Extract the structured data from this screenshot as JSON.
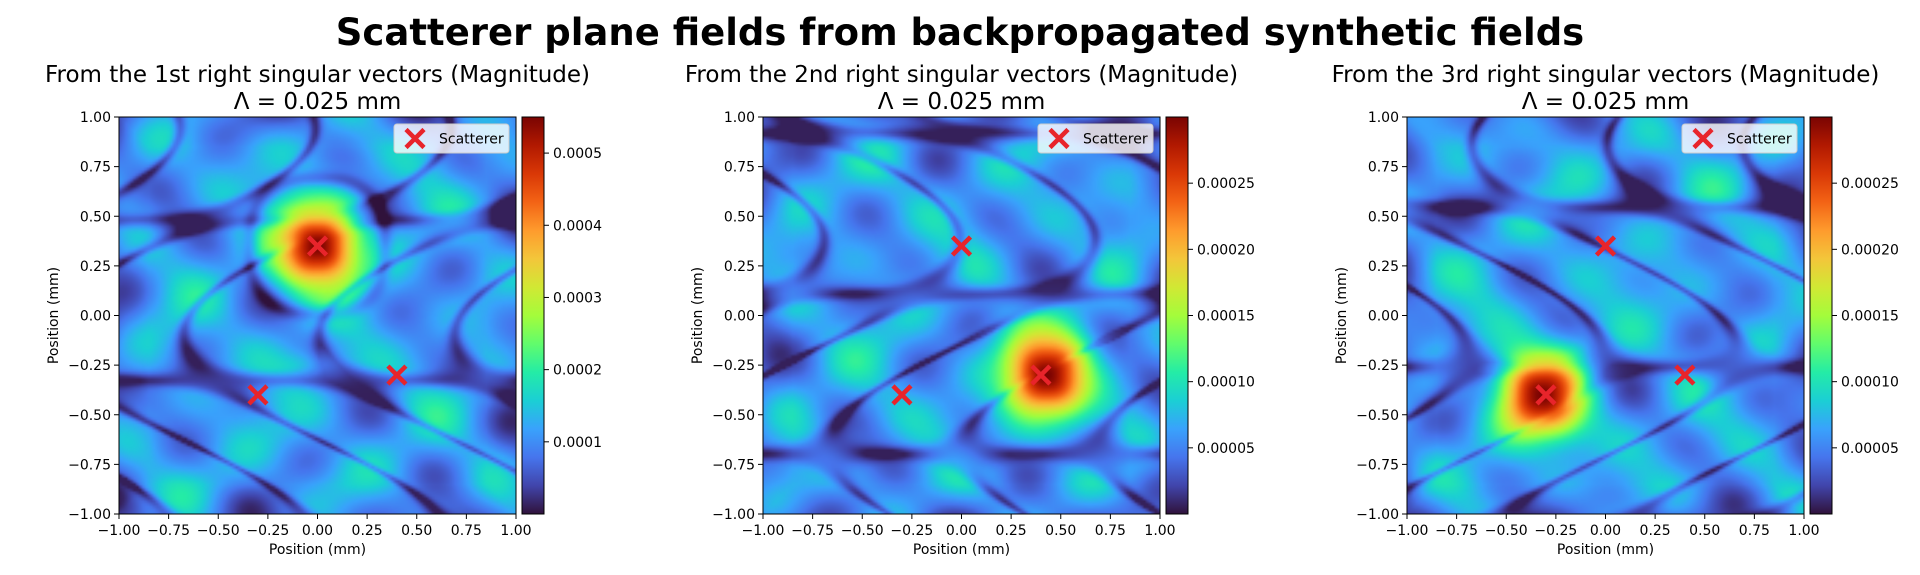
{
  "suptitle": "Scatterer plane fields from backpropagated synthetic fields",
  "colors": {
    "marker": "#e8242b",
    "colormap": [
      "#30123b",
      "#4145ab",
      "#4675ed",
      "#39a2fc",
      "#1bcfd4",
      "#24eca6",
      "#61fc6c",
      "#a4fc3b",
      "#d1e834",
      "#f3c63a",
      "#fe9b2d",
      "#f36315",
      "#d93806",
      "#b11901",
      "#7a0402"
    ]
  },
  "chart_data": [
    {
      "type": "heatmap",
      "title": "From the 1st right singular vectors (Magnitude)",
      "subtitle": "Λ = 0.025 mm",
      "xlabel": "Position (mm)",
      "ylabel": "Position (mm)",
      "xlim": [
        -1.0,
        1.0
      ],
      "ylim": [
        -1.0,
        1.0
      ],
      "xticks": [
        "−1.00",
        "−0.75",
        "−0.50",
        "−0.25",
        "0.00",
        "0.25",
        "0.50",
        "0.75",
        "1.00"
      ],
      "yticks": [
        "−1.00",
        "−0.75",
        "−0.50",
        "−0.25",
        "0.00",
        "0.25",
        "0.50",
        "0.75",
        "1.00"
      ],
      "colorbar": {
        "min": 0.0,
        "max": 0.00055,
        "ticks": [
          0.0001,
          0.0002,
          0.0003,
          0.0004,
          0.0005
        ],
        "tick_labels": [
          "0.0001",
          "0.0002",
          "0.0003",
          "0.0004",
          "0.0005"
        ]
      },
      "peak": {
        "x": 0.0,
        "y": 0.35,
        "value": 0.00055
      },
      "scatterers": [
        {
          "x": 0.0,
          "y": 0.35
        },
        {
          "x": -0.3,
          "y": -0.4
        },
        {
          "x": 0.4,
          "y": -0.3
        }
      ],
      "legend": {
        "entries": [
          "Scatterer"
        ],
        "position": "upper-right"
      }
    },
    {
      "type": "heatmap",
      "title": "From the 2nd right singular vectors (Magnitude)",
      "subtitle": "Λ = 0.025 mm",
      "xlabel": "Position (mm)",
      "ylabel": "Position (mm)",
      "xlim": [
        -1.0,
        1.0
      ],
      "ylim": [
        -1.0,
        1.0
      ],
      "xticks": [
        "−1.00",
        "−0.75",
        "−0.50",
        "−0.25",
        "0.00",
        "0.25",
        "0.50",
        "0.75",
        "1.00"
      ],
      "yticks": [
        "−1.00",
        "−0.75",
        "−0.50",
        "−0.25",
        "0.00",
        "0.25",
        "0.50",
        "0.75",
        "1.00"
      ],
      "colorbar": {
        "min": 0.0,
        "max": 0.0003,
        "ticks": [
          5e-05,
          0.0001,
          0.00015,
          0.0002,
          0.00025
        ],
        "tick_labels": [
          "0.00005",
          "0.00010",
          "0.00015",
          "0.00020",
          "0.00025"
        ]
      },
      "peak": {
        "x": 0.43,
        "y": -0.3,
        "value": 0.0003
      },
      "scatterers": [
        {
          "x": 0.0,
          "y": 0.35
        },
        {
          "x": -0.3,
          "y": -0.4
        },
        {
          "x": 0.4,
          "y": -0.3
        }
      ],
      "legend": {
        "entries": [
          "Scatterer"
        ],
        "position": "upper-right"
      }
    },
    {
      "type": "heatmap",
      "title": "From the 3rd right singular vectors (Magnitude)",
      "subtitle": "Λ = 0.025 mm",
      "xlabel": "Position (mm)",
      "ylabel": "Position (mm)",
      "xlim": [
        -1.0,
        1.0
      ],
      "ylim": [
        -1.0,
        1.0
      ],
      "xticks": [
        "−1.00",
        "−0.75",
        "−0.50",
        "−0.25",
        "0.00",
        "0.25",
        "0.50",
        "0.75",
        "1.00"
      ],
      "yticks": [
        "−1.00",
        "−0.75",
        "−0.50",
        "−0.25",
        "0.00",
        "0.25",
        "0.50",
        "0.75",
        "1.00"
      ],
      "colorbar": {
        "min": 0.0,
        "max": 0.0003,
        "ticks": [
          5e-05,
          0.0001,
          0.00015,
          0.0002,
          0.00025
        ],
        "tick_labels": [
          "0.00005",
          "0.00010",
          "0.00015",
          "0.00020",
          "0.00025"
        ]
      },
      "peak": {
        "x": -0.32,
        "y": -0.4,
        "value": 0.0003
      },
      "scatterers": [
        {
          "x": 0.0,
          "y": 0.35
        },
        {
          "x": -0.3,
          "y": -0.4
        },
        {
          "x": 0.4,
          "y": -0.3
        }
      ],
      "legend": {
        "entries": [
          "Scatterer"
        ],
        "position": "upper-right"
      }
    }
  ]
}
